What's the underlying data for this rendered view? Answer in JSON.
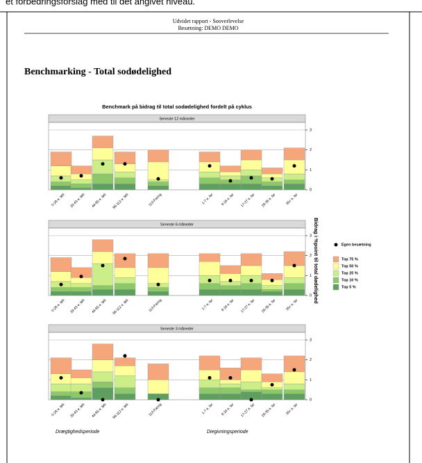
{
  "intro_text": "et forbedringsforslag med til det angivet niveau.",
  "header": {
    "line1": "Udvidet rapport - Sooverlevelse",
    "line2": "Besætning: DEMO DEMO"
  },
  "heading": "Benchmarking - Total sodødelighed",
  "chart_data": {
    "type": "stacked_bar",
    "title": "Benchmark på bidrag til total sodødelighed fordelt på cyklus",
    "ylabel": "Bidrag i %point til total dødelighed",
    "categories": [
      "0-28 e. løb",
      "29-43 e. løb",
      "44-85 e. løb",
      "86-112 e. løb",
      "113-Faring",
      "1-7 e. far",
      "8-16 e. far",
      "17-27 e. far",
      "28-35 e. far",
      "35< e. far"
    ],
    "group_labels": [
      "Drægtighedsperiode",
      "Diegivningsperiode"
    ],
    "ylim": [
      0,
      3
    ],
    "yticks": [
      0,
      1,
      2,
      3
    ],
    "grid": true,
    "legend": "right",
    "marker": {
      "name": "Egen besætning",
      "color": "#000000"
    },
    "series": [
      {
        "name": "Top 75 %",
        "color": "#f5a77b"
      },
      {
        "name": "Top 50 %",
        "color": "#ffff99"
      },
      {
        "name": "Top 25 %",
        "color": "#ccee88"
      },
      {
        "name": "Top 10 %",
        "color": "#8cc86a"
      },
      {
        "name": "Top 5 %",
        "color": "#5e9e5e"
      }
    ],
    "panels": [
      {
        "title": "Seneste 12 måneder",
        "series": [
          {
            "values": [
              0.7,
              0.4,
              0.6,
              0.6,
              0.6,
              0.5,
              0.3,
              0.5,
              0.3,
              0.6
            ]
          },
          {
            "values": [
              0.5,
              0.3,
              0.6,
              0.4,
              0.9,
              0.5,
              0.2,
              0.5,
              0.2,
              0.7
            ]
          },
          {
            "values": [
              0.3,
              0.2,
              0.7,
              0.3,
              0.1,
              0.3,
              0.2,
              0.3,
              0.2,
              0.3
            ]
          },
          {
            "values": [
              0.2,
              0.2,
              0.5,
              0.3,
              0.2,
              0.3,
              0.2,
              0.4,
              0.2,
              0.2
            ]
          },
          {
            "values": [
              0.2,
              0.1,
              0.3,
              0.3,
              0.2,
              0.3,
              0.3,
              0.3,
              0.2,
              0.3
            ]
          }
        ],
        "marker_values": [
          0.6,
          0.7,
          1.3,
          1.3,
          0.55,
          1.2,
          0.45,
          0.6,
          0.55,
          1.2
        ]
      },
      {
        "title": "Seneste 6 måneder",
        "series": [
          {
            "values": [
              0.7,
              0.5,
              0.6,
              0.7,
              0.7,
              0.4,
              0.4,
              0.6,
              0.3,
              0.7
            ]
          },
          {
            "values": [
              0.5,
              0.3,
              0.6,
              0.5,
              0.8,
              0.7,
              0.4,
              0.5,
              0.3,
              0.6
            ]
          },
          {
            "values": [
              0.3,
              0.2,
              1.1,
              0.3,
              0.2,
              0.4,
              0.2,
              0.4,
              0.2,
              0.3
            ]
          },
          {
            "values": [
              0.2,
              0.2,
              0.2,
              0.3,
              0.2,
              0.3,
              0.2,
              0.3,
              0.1,
              0.3
            ]
          },
          {
            "values": [
              0.2,
              0.2,
              0.3,
              0.3,
              0.2,
              0.3,
              0.3,
              0.3,
              0.2,
              0.3
            ]
          }
        ],
        "marker_values": [
          0.55,
          0.95,
          1.5,
          1.85,
          0.55,
          0.75,
          0.75,
          0.75,
          0.75,
          1.5
        ]
      },
      {
        "title": "Seneste 3 måneder",
        "series": [
          {
            "values": [
              0.8,
              0.4,
              0.8,
              0.4,
              0.8,
              0.7,
              0.6,
              0.6,
              0.4,
              0.8
            ]
          },
          {
            "values": [
              0.5,
              0.3,
              0.6,
              0.5,
              0.7,
              0.5,
              0.2,
              0.6,
              0.3,
              0.6
            ]
          },
          {
            "values": [
              0.4,
              0.4,
              0.5,
              0.6,
              0.0,
              0.4,
              0.2,
              0.4,
              0.1,
              0.3
            ]
          },
          {
            "values": [
              0.2,
              0.3,
              0.3,
              0.3,
              0.0,
              0.3,
              0.3,
              0.1,
              0.2,
              0.2
            ]
          },
          {
            "values": [
              0.2,
              0.1,
              0.6,
              0.3,
              0.3,
              0.3,
              0.3,
              0.4,
              0.3,
              0.3
            ]
          }
        ],
        "marker_values": [
          1.1,
          0.35,
          0.0,
          2.2,
          0.0,
          1.1,
          1.1,
          0.0,
          0.75,
          1.5
        ]
      }
    ]
  }
}
